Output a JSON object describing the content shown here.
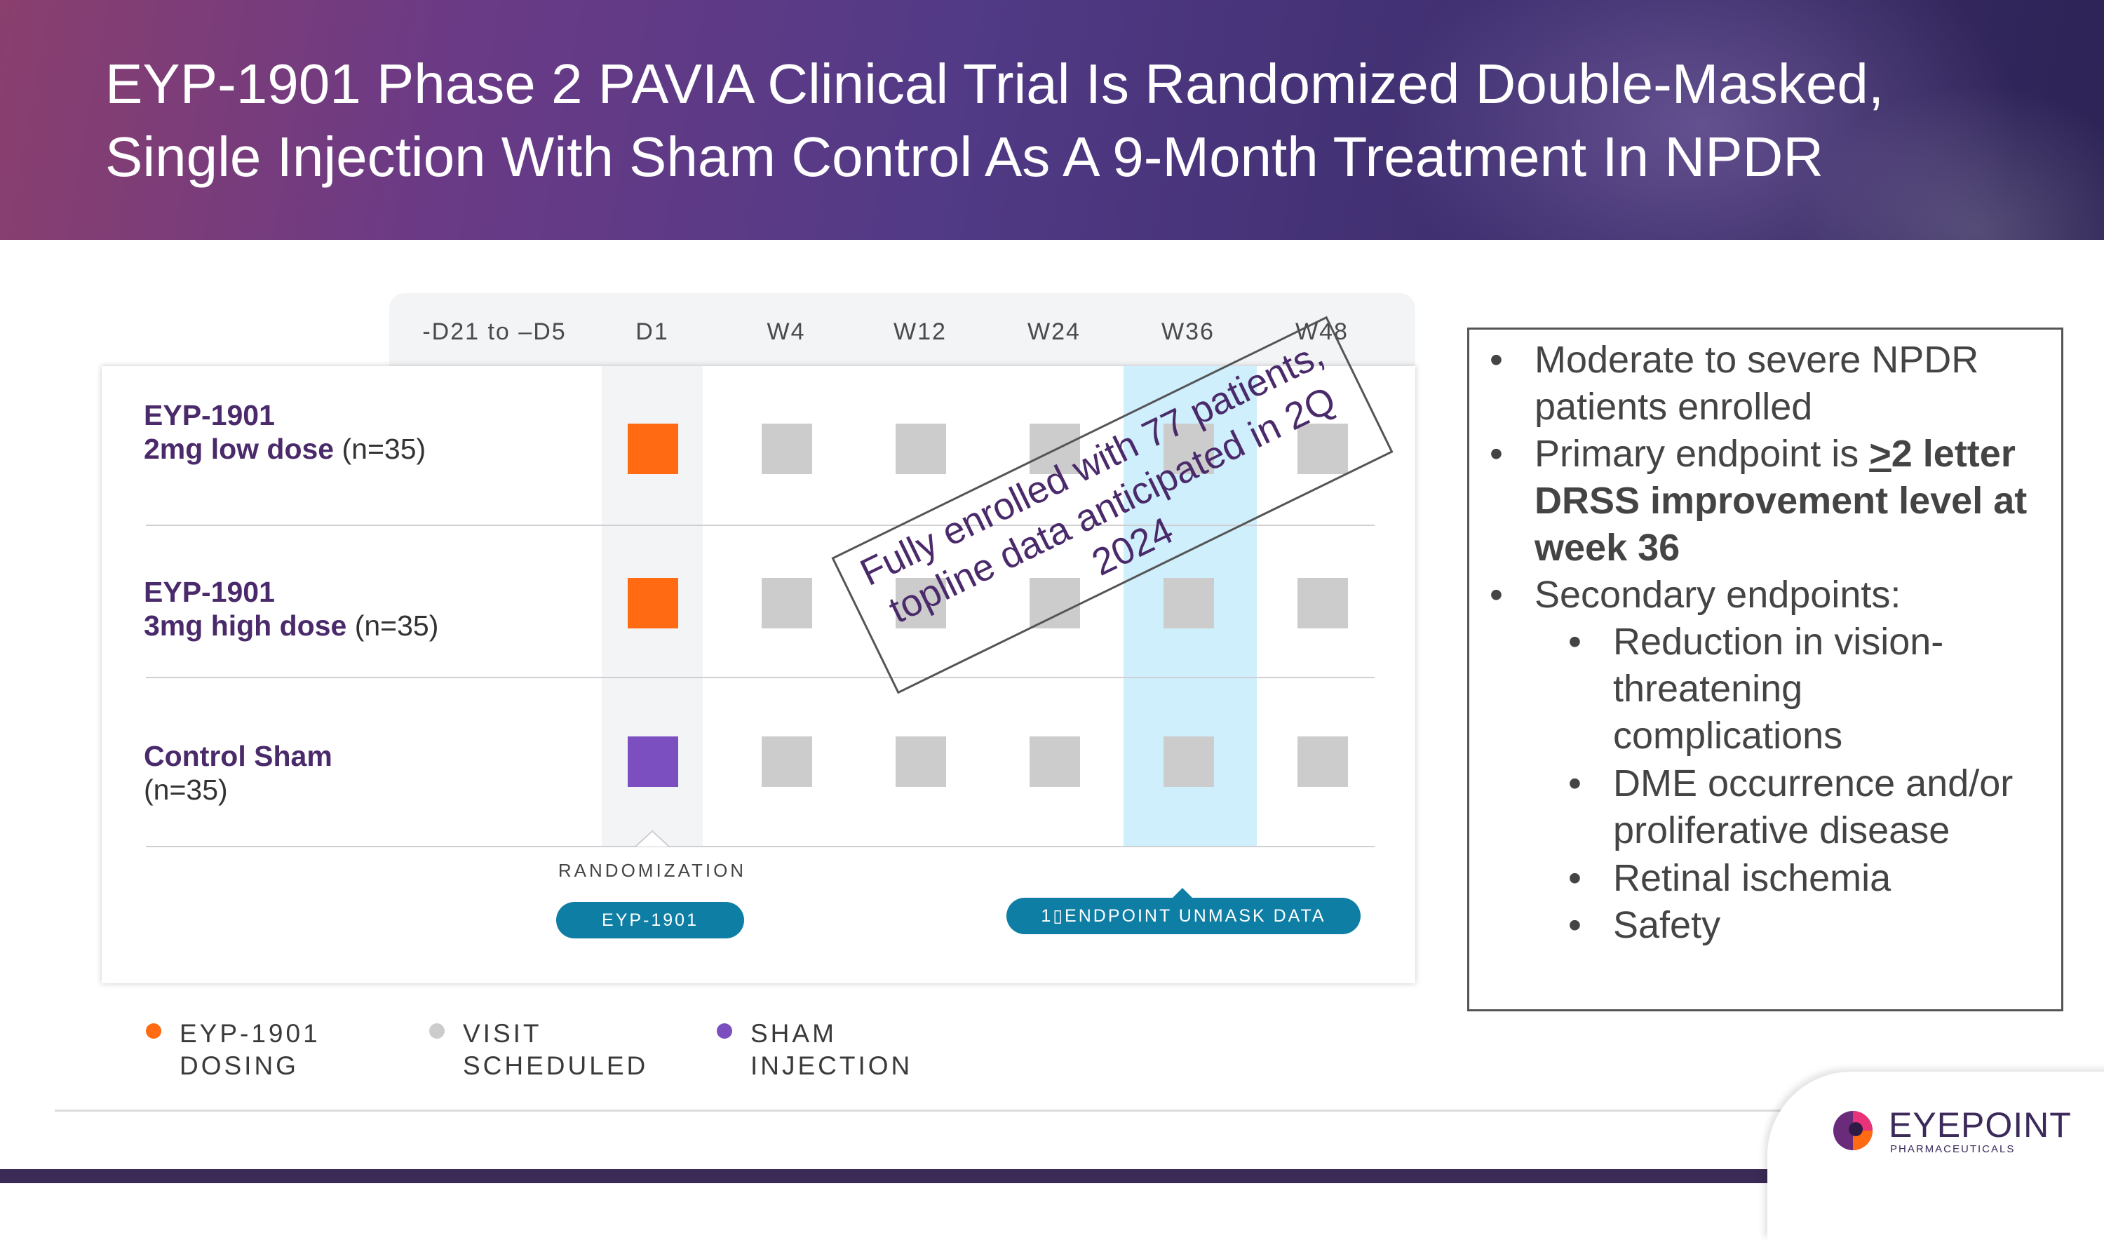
{
  "title": {
    "line1": "EYP-1901 Phase 2 PAVIA Clinical Trial Is Randomized Double-Masked,",
    "line2": "Single Injection With Sham Control As A 9-Month Treatment In NPDR"
  },
  "schedule": {
    "columns": [
      "-D21 to –D5",
      "D1",
      "W4",
      "W12",
      "W24",
      "W36",
      "W48"
    ],
    "arms": [
      {
        "name": "EYP-1901",
        "dose": "2mg low dose",
        "n": "(n=35)",
        "d1": "EYP-1901 dosing"
      },
      {
        "name": "EYP-1901",
        "dose": "3mg high dose",
        "n": "(n=35)",
        "d1": "EYP-1901 dosing"
      },
      {
        "name": "Control Sham",
        "dose": "",
        "n": "(n=35)",
        "d1": "Sham injection"
      }
    ],
    "randomization_label": "RANDOMIZATION",
    "d1_pill": "EYP-1901",
    "endpoint_pill": "1▯ENDPOINT UNMASK DATA",
    "overlay": "Fully enrolled with 77 patients, topline data anticipated in 2Q 2024"
  },
  "legend": [
    {
      "line1": "EYP-1901",
      "line2": "DOSING",
      "color": "#ff6a13"
    },
    {
      "line1": "VISIT",
      "line2": "SCHEDULED",
      "color": "#cccccc"
    },
    {
      "line1": "SHAM",
      "line2": "INJECTION",
      "color": "#7b4fbf"
    }
  ],
  "bullets": {
    "b1": "Moderate to severe NPDR patients enrolled",
    "b2_prefix": "Primary endpoint is ",
    "b2_ge": ">",
    "b2_bold": "2 letter DRSS improvement level at week 36",
    "b3": "Secondary endpoints:",
    "sub": [
      "Reduction in vision-threatening complications",
      "DME occurrence and/or proliferative disease",
      "Retinal ischemia",
      "Safety"
    ]
  },
  "logo": {
    "word": "EYEPOINT",
    "sub": "PHARMACEUTICALS"
  },
  "colors": {
    "orange": "#ff6a13",
    "gray": "#cccccc",
    "purple": "#7b4fbf",
    "teal": "#0f7ea4",
    "header_purple": "#523a86"
  }
}
